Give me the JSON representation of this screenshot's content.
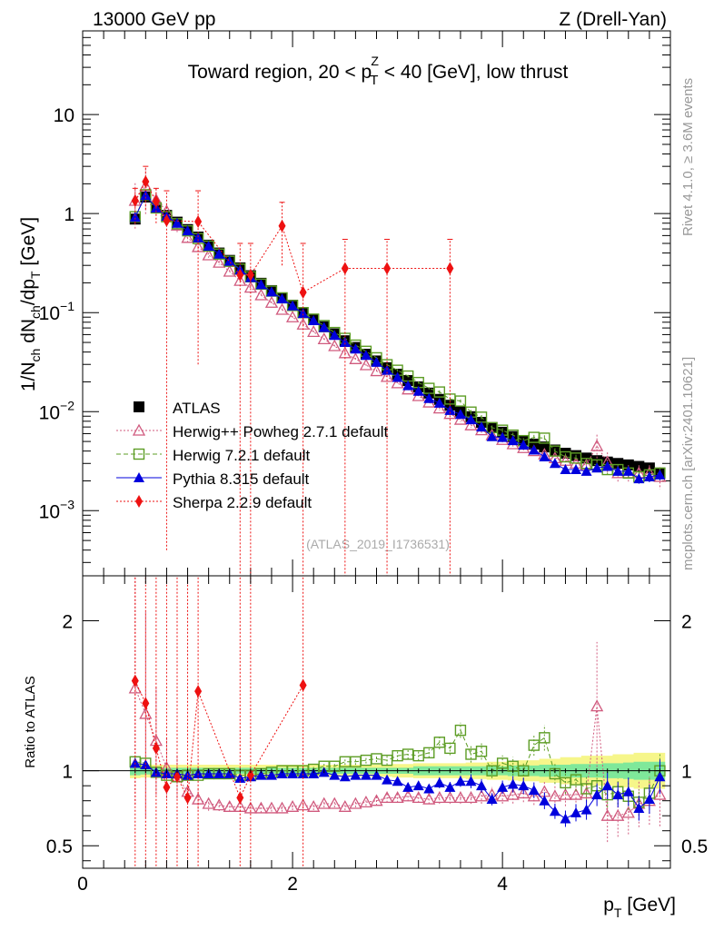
{
  "header": {
    "left": "13000 GeV pp",
    "right": "Z (Drell-Yan)"
  },
  "side_labels": {
    "top": "Rivet 4.1.0, ≥ 3.6M events",
    "bottom": "mcplots.cern.ch [arXiv:2401.10621]"
  },
  "watermark": "(ATLAS_2019_I1736531)",
  "chart_data": [
    {
      "type": "scatter",
      "title": "Toward region, 20 < p_T^Z < 40 [GeV], low thrust",
      "title_parts": {
        "a": "Toward region, 20 < p",
        "sub": "T",
        "sup": "Z",
        "b": " < 40 [GeV], low thrust"
      },
      "ylabel": "1/N_ch dN_ch/dp_T [GeV]",
      "ylabel_parts": {
        "a": "1/N",
        "s1": "ch",
        "b": " dN",
        "s2": "ch",
        "c": "/dp",
        "s3": "T",
        "d": " [GeV]"
      },
      "yscale": "log",
      "ylim": [
        0.00022,
        70
      ],
      "xlim": [
        0,
        5.6
      ],
      "ytick_labels": [
        {
          "value": 10,
          "base": "10",
          "exp": ""
        },
        {
          "value": 1,
          "base": "1",
          "exp": ""
        },
        {
          "value": 0.1,
          "base": "10",
          "exp": "−1"
        },
        {
          "value": 0.01,
          "base": "10",
          "exp": "−2"
        },
        {
          "value": 0.001,
          "base": "10",
          "exp": "−3"
        }
      ],
      "legend": [
        {
          "key": "atlas",
          "label": "ATLAS"
        },
        {
          "key": "herwigpp",
          "label": "Herwig++ Powheg 2.7.1 default"
        },
        {
          "key": "herwig7",
          "label": "Herwig 7.2.1 default"
        },
        {
          "key": "pythia",
          "label": "Pythia 8.315 default"
        },
        {
          "key": "sherpa",
          "label": "Sherpa 2.2.9 default"
        }
      ],
      "x": [
        0.5,
        0.6,
        0.7,
        0.8,
        0.9,
        1.0,
        1.1,
        1.2,
        1.3,
        1.4,
        1.5,
        1.6,
        1.7,
        1.8,
        1.9,
        2.0,
        2.1,
        2.2,
        2.3,
        2.4,
        2.5,
        2.6,
        2.7,
        2.8,
        2.9,
        3.0,
        3.1,
        3.2,
        3.3,
        3.4,
        3.5,
        3.6,
        3.7,
        3.8,
        3.9,
        4.0,
        4.1,
        4.2,
        4.3,
        4.4,
        4.5,
        4.6,
        4.7,
        4.8,
        4.9,
        5.0,
        5.1,
        5.2,
        5.3,
        5.4,
        5.5
      ],
      "series": [
        {
          "name": "ATLAS",
          "key": "atlas",
          "color": "#000000",
          "values": [
            0.88,
            1.47,
            1.15,
            0.96,
            0.82,
            0.69,
            0.58,
            0.48,
            0.4,
            0.337,
            0.283,
            0.236,
            0.198,
            0.167,
            0.141,
            0.119,
            0.1,
            0.085,
            0.072,
            0.061,
            0.052,
            0.0445,
            0.038,
            0.0325,
            0.0278,
            0.0239,
            0.0206,
            0.0178,
            0.0154,
            0.0133,
            0.0116,
            0.0101,
            0.0089,
            0.0078,
            0.0069,
            0.0062,
            0.0056,
            0.0051,
            0.0047,
            0.0044,
            0.0041,
            0.0038,
            0.0036,
            0.0034,
            0.0032,
            0.0031,
            0.003,
            0.0029,
            0.0028,
            0.0027,
            0.0024
          ]
        },
        {
          "name": "Herwig++ Powheg 2.7.1 default",
          "key": "herwigpp",
          "color": "#d05a7e",
          "values": [
            1.35,
            1.9,
            1.38,
            1.06,
            0.76,
            0.57,
            0.46,
            0.38,
            0.32,
            0.26,
            0.21,
            0.179,
            0.15,
            0.126,
            0.107,
            0.09,
            0.076,
            0.064,
            0.054,
            0.046,
            0.039,
            0.034,
            0.0295,
            0.0257,
            0.0225,
            0.0194,
            0.0168,
            0.0144,
            0.0124,
            0.0108,
            0.0095,
            0.0083,
            0.0073,
            0.0065,
            0.0058,
            0.0052,
            0.0047,
            0.0043,
            0.004,
            0.0037,
            0.0034,
            0.0032,
            0.003,
            0.0029,
            0.0045,
            0.0031,
            0.0024,
            0.0024,
            0.0024,
            0.0024,
            0.0022
          ],
          "err": [
            0.5,
            0.5,
            0.3,
            0.2,
            0.15,
            0.1,
            0.08,
            0.06,
            0.05,
            0.04,
            0.04,
            0.04,
            0.04,
            0.03,
            0.03,
            0.03,
            0.03,
            0.03,
            0.03,
            0.03,
            0.03,
            0.03,
            0.03,
            0.04,
            0.04,
            0.04,
            0.04,
            0.04,
            0.04,
            0.05,
            0.05,
            0.05,
            0.05,
            0.06,
            0.06,
            0.06,
            0.07,
            0.07,
            0.07,
            0.08,
            0.08,
            0.09,
            0.09,
            0.1,
            0.3,
            0.25,
            0.2,
            0.2,
            0.2,
            0.2,
            0.25
          ]
        },
        {
          "name": "Herwig 7.2.1 default",
          "key": "herwig7",
          "color": "#5d9d25",
          "values": [
            0.93,
            1.55,
            1.14,
            0.93,
            0.79,
            0.67,
            0.56,
            0.47,
            0.39,
            0.33,
            0.275,
            0.23,
            0.194,
            0.165,
            0.141,
            0.118,
            0.1,
            0.086,
            0.074,
            0.063,
            0.055,
            0.047,
            0.0407,
            0.035,
            0.0298,
            0.0262,
            0.0229,
            0.0197,
            0.0172,
            0.0158,
            0.0134,
            0.0128,
            0.0099,
            0.0088,
            0.0069,
            0.0065,
            0.0058,
            0.0051,
            0.0055,
            0.0054,
            0.004,
            0.0035,
            0.0034,
            0.003,
            0.0029,
            0.0026,
            0.0026,
            0.0024,
            0.0022,
            0.0023,
            0.0024
          ],
          "err": [
            0.03,
            0.02,
            0.02,
            0.02,
            0.02,
            0.02,
            0.02,
            0.02,
            0.02,
            0.02,
            0.02,
            0.02,
            0.02,
            0.02,
            0.02,
            0.02,
            0.02,
            0.02,
            0.02,
            0.02,
            0.02,
            0.02,
            0.02,
            0.02,
            0.03,
            0.03,
            0.03,
            0.03,
            0.03,
            0.04,
            0.04,
            0.04,
            0.05,
            0.05,
            0.05,
            0.05,
            0.06,
            0.06,
            0.06,
            0.07,
            0.07,
            0.08,
            0.08,
            0.09,
            0.09,
            0.1,
            0.1,
            0.11,
            0.11,
            0.12,
            0.12
          ]
        },
        {
          "name": "Pythia 8.315 default",
          "key": "pythia",
          "color": "#0000dd",
          "values": [
            0.92,
            1.53,
            1.14,
            0.94,
            0.8,
            0.67,
            0.57,
            0.47,
            0.39,
            0.33,
            0.27,
            0.226,
            0.192,
            0.162,
            0.138,
            0.117,
            0.098,
            0.083,
            0.071,
            0.059,
            0.05,
            0.043,
            0.037,
            0.0315,
            0.0262,
            0.0222,
            0.0183,
            0.0161,
            0.0136,
            0.0122,
            0.0103,
            0.0094,
            0.0083,
            0.007,
            0.0056,
            0.0055,
            0.0051,
            0.0046,
            0.0041,
            0.0035,
            0.003,
            0.0026,
            0.0026,
            0.0025,
            0.0027,
            0.0028,
            0.0025,
            0.0025,
            0.0021,
            0.0022,
            0.0023
          ],
          "err": [
            0.03,
            0.02,
            0.02,
            0.02,
            0.02,
            0.02,
            0.02,
            0.02,
            0.02,
            0.02,
            0.02,
            0.02,
            0.02,
            0.02,
            0.02,
            0.02,
            0.02,
            0.02,
            0.02,
            0.02,
            0.02,
            0.02,
            0.02,
            0.02,
            0.03,
            0.03,
            0.03,
            0.03,
            0.03,
            0.04,
            0.04,
            0.04,
            0.05,
            0.05,
            0.05,
            0.05,
            0.06,
            0.06,
            0.06,
            0.07,
            0.07,
            0.08,
            0.08,
            0.09,
            0.09,
            0.1,
            0.1,
            0.11,
            0.11,
            0.12,
            0.12
          ]
        },
        {
          "name": "Sherpa 2.2.9 default",
          "key": "sherpa",
          "color": "#ee1111",
          "x": [
            0.5,
            0.6,
            0.7,
            0.8,
            1.1,
            1.5,
            1.6,
            1.9,
            2.1,
            2.5,
            2.9,
            3.5
          ],
          "values": [
            1.35,
            2.1,
            1.33,
            0.85,
            0.83,
            0.24,
            0.24,
            0.75,
            0.16,
            0.28,
            0.28,
            0.28
          ],
          "lo": [
            0.8,
            1.1,
            0.8,
            0.0004,
            0.03,
            0.0001,
            0.0001,
            0.3,
            0.0001,
            0.0001,
            0.0001,
            0.0001
          ],
          "hi": [
            1.8,
            3.0,
            1.8,
            1.7,
            1.7,
            0.5,
            0.5,
            1.3,
            0.5,
            0.55,
            0.55,
            0.55
          ]
        }
      ]
    },
    {
      "type": "scatter",
      "title": "",
      "ylabel": "Ratio to ATLAS",
      "xlabel": "p_T [GeV]",
      "xlabel_parts": {
        "a": "p",
        "sub": "T",
        "b": " [GeV]"
      },
      "ylim": [
        0.35,
        2.3
      ],
      "xlim": [
        0,
        5.6
      ],
      "ytick_labels": [
        "0.5",
        "1",
        "2"
      ],
      "ytick_labels_right": [
        "0.5",
        "1",
        "2"
      ],
      "xtick_labels": [
        "0",
        "2",
        "4"
      ],
      "band_stat": [
        0.03,
        0.025,
        0.02,
        0.02,
        0.02,
        0.02,
        0.02,
        0.02,
        0.02,
        0.02,
        0.02,
        0.02,
        0.02,
        0.02,
        0.02,
        0.02,
        0.02,
        0.02,
        0.02,
        0.02,
        0.02,
        0.02,
        0.02,
        0.02,
        0.02,
        0.02,
        0.02,
        0.03,
        0.03,
        0.03,
        0.03,
        0.03,
        0.03,
        0.03,
        0.03,
        0.03,
        0.035,
        0.035,
        0.035,
        0.04,
        0.04,
        0.04,
        0.045,
        0.045,
        0.045,
        0.05,
        0.05,
        0.055,
        0.06,
        0.06,
        0.06
      ],
      "band_total": [
        0.05,
        0.045,
        0.04,
        0.04,
        0.04,
        0.04,
        0.04,
        0.04,
        0.04,
        0.04,
        0.04,
        0.04,
        0.04,
        0.04,
        0.04,
        0.04,
        0.04,
        0.04,
        0.04,
        0.04,
        0.04,
        0.04,
        0.04,
        0.04,
        0.04,
        0.045,
        0.045,
        0.05,
        0.05,
        0.05,
        0.05,
        0.05,
        0.055,
        0.055,
        0.06,
        0.06,
        0.065,
        0.07,
        0.07,
        0.08,
        0.08,
        0.09,
        0.09,
        0.1,
        0.1,
        0.1,
        0.11,
        0.11,
        0.12,
        0.12,
        0.12
      ],
      "series": [
        {
          "name": "Herwig++ Powheg 2.7.1 default",
          "key": "herwigpp",
          "values": [
            1.55,
            1.38,
            1.2,
            1.02,
            0.96,
            0.86,
            0.81,
            0.78,
            0.77,
            0.76,
            0.76,
            0.75,
            0.75,
            0.75,
            0.75,
            0.76,
            0.77,
            0.76,
            0.78,
            0.78,
            0.76,
            0.78,
            0.79,
            0.8,
            0.82,
            0.82,
            0.83,
            0.82,
            0.81,
            0.82,
            0.82,
            0.82,
            0.82,
            0.83,
            0.84,
            0.83,
            0.84,
            0.85,
            0.83,
            0.86,
            0.83,
            0.84,
            0.84,
            0.85,
            1.43,
            0.7,
            0.7,
            0.72,
            0.78,
            0.8,
            0.84
          ]
        },
        {
          "name": "Herwig 7.2.1 default",
          "key": "herwig7",
          "values": [
            1.06,
            1.05,
            0.99,
            0.97,
            0.96,
            0.97,
            0.97,
            0.98,
            0.98,
            0.98,
            0.97,
            0.97,
            0.98,
            0.99,
            1.0,
            1.0,
            1.0,
            1.01,
            1.03,
            1.03,
            1.06,
            1.06,
            1.07,
            1.08,
            1.07,
            1.1,
            1.11,
            1.1,
            1.12,
            1.19,
            1.15,
            1.27,
            1.11,
            1.13,
            1.0,
            1.05,
            1.03,
            1.0,
            1.17,
            1.22,
            0.98,
            0.92,
            0.94,
            0.88,
            0.9,
            0.84,
            0.86,
            0.83,
            0.79,
            0.85,
            1.0
          ]
        },
        {
          "name": "Pythia 8.315 default",
          "key": "pythia",
          "values": [
            1.05,
            1.04,
            0.99,
            0.98,
            0.98,
            0.97,
            0.98,
            0.98,
            0.98,
            0.98,
            0.95,
            0.96,
            0.97,
            0.97,
            0.98,
            0.98,
            0.98,
            0.98,
            0.99,
            0.97,
            0.96,
            0.97,
            0.97,
            0.97,
            0.94,
            0.93,
            0.89,
            0.9,
            0.88,
            0.92,
            0.89,
            0.93,
            0.93,
            0.9,
            0.81,
            0.89,
            0.91,
            0.9,
            0.87,
            0.8,
            0.73,
            0.68,
            0.72,
            0.74,
            0.84,
            0.9,
            0.84,
            0.86,
            0.75,
            0.81,
            0.96
          ]
        },
        {
          "name": "Sherpa 2.2.9 default",
          "key": "sherpa",
          "x": [
            0.5,
            0.6,
            0.7,
            0.8,
            0.9,
            1.0,
            1.1,
            1.5,
            1.6,
            2.1
          ],
          "values": [
            1.6,
            1.45,
            1.15,
            0.89,
            0.96,
            0.82,
            1.53,
            0.82,
            0.97,
            1.57
          ]
        }
      ]
    }
  ]
}
